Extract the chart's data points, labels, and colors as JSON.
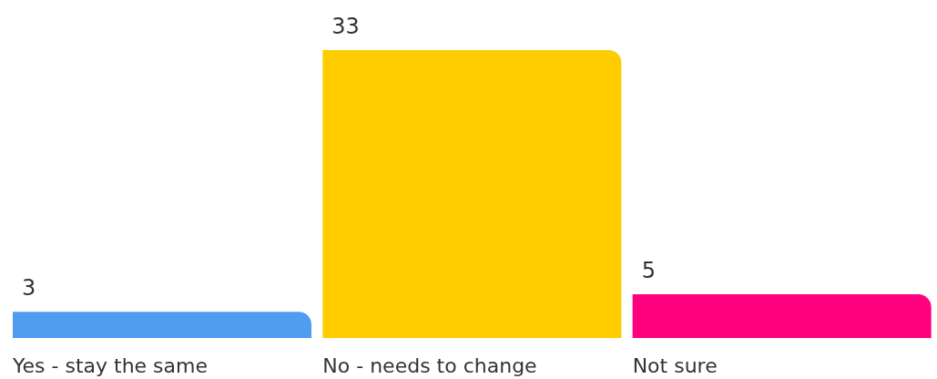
{
  "chart_data": {
    "type": "bar",
    "categories": [
      "Yes - stay the same",
      "No - needs to change",
      "Not sure"
    ],
    "values": [
      3,
      33,
      5
    ],
    "colors": [
      "#4f9cf0",
      "#ffcc00",
      "#ff007f"
    ],
    "data_labels": true
  }
}
